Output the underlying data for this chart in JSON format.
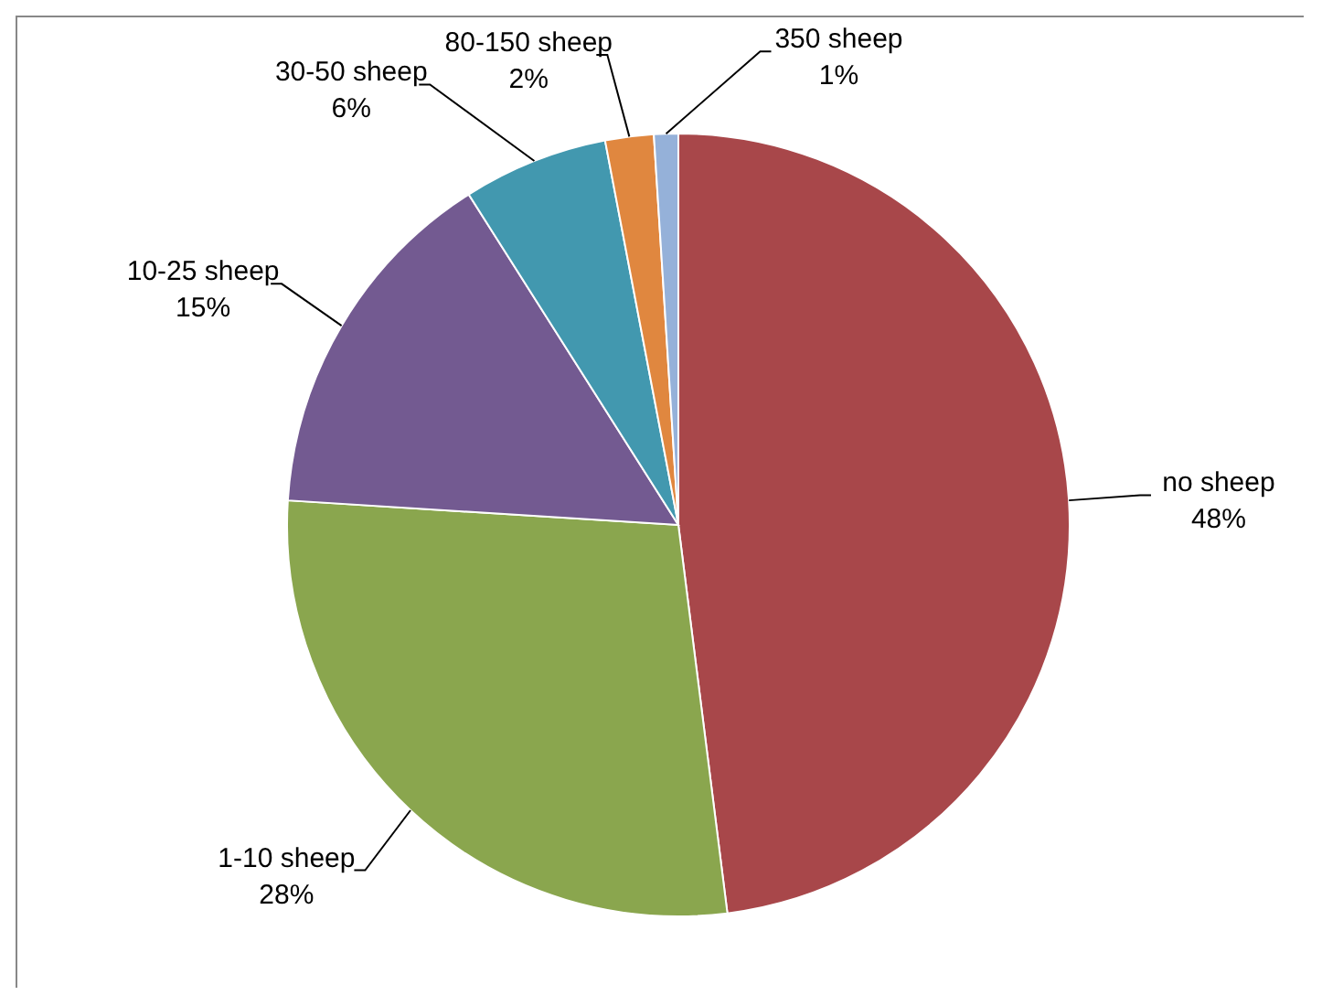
{
  "chart_data": {
    "type": "pie",
    "categories": [
      "no sheep",
      "1-10  sheep",
      "10-25 sheep",
      "30-50 sheep",
      "80-150 sheep",
      "350 sheep"
    ],
    "values": [
      48,
      28,
      15,
      6,
      2,
      1
    ],
    "colors": [
      "#a8474a",
      "#8aa64e",
      "#735a91",
      "#4298af",
      "#e0873f",
      "#95b1d9"
    ],
    "value_labels": [
      "48%",
      "28%",
      "15%",
      "6%",
      "2%",
      "1%"
    ]
  }
}
